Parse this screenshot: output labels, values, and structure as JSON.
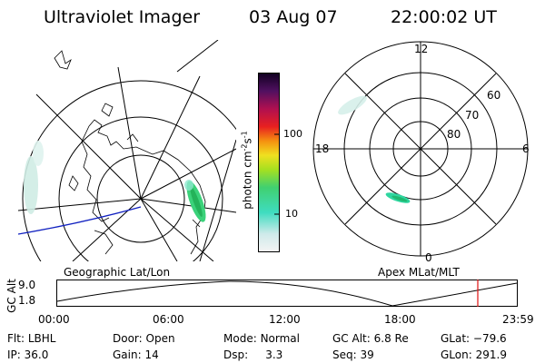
{
  "header": {
    "instrument": "Ultraviolet Imager",
    "date": "03 Aug 07",
    "time": "22:00:02 UT"
  },
  "colorbar": {
    "label": "photon cm⁻²s⁻¹",
    "label_main": "photon cm",
    "label_sup1": "-2",
    "label_mid": "s",
    "label_sup2": "-1",
    "ticks": [
      "100",
      "10"
    ]
  },
  "polar_plot": {
    "mlt_labels": {
      "top": "12",
      "bottom": "0",
      "left": "18",
      "right": "6"
    },
    "lat_labels": [
      "60",
      "70",
      "80"
    ]
  },
  "plot_labels": {
    "left": "Geographic Lat/Lon",
    "right": "Apex  MLat/MLT"
  },
  "alt_chart": {
    "ylabel": "GC Alt",
    "y_ticks": [
      "9.0",
      "1.8"
    ],
    "x_ticks": [
      "00:00",
      "06:00",
      "12:00",
      "18:00",
      "23:59"
    ],
    "current_time_marker": "22:00"
  },
  "info": {
    "filter_label": "Flt:",
    "filter_value": "LBHL",
    "door_label": "Door:",
    "door_value": "Open",
    "mode_label": "Mode:",
    "mode_value": "Normal",
    "gcalt_label": "GC Alt:",
    "gcalt_value": "6.8 Re",
    "glat_label": "GLat:",
    "glat_value": "−79.6",
    "ip_label": "IP:",
    "ip_value": "36.0",
    "gain_label": "Gain:",
    "gain_value": "14",
    "dsp_label": "Dsp:",
    "dsp_value": "3.3",
    "seq_label": "Seq:",
    "seq_value": "39",
    "glon_label": "GLon:",
    "glon_value": "291.9"
  },
  "colors": {
    "accent_blue": "#1020c0",
    "marker_red": "#e01010"
  }
}
